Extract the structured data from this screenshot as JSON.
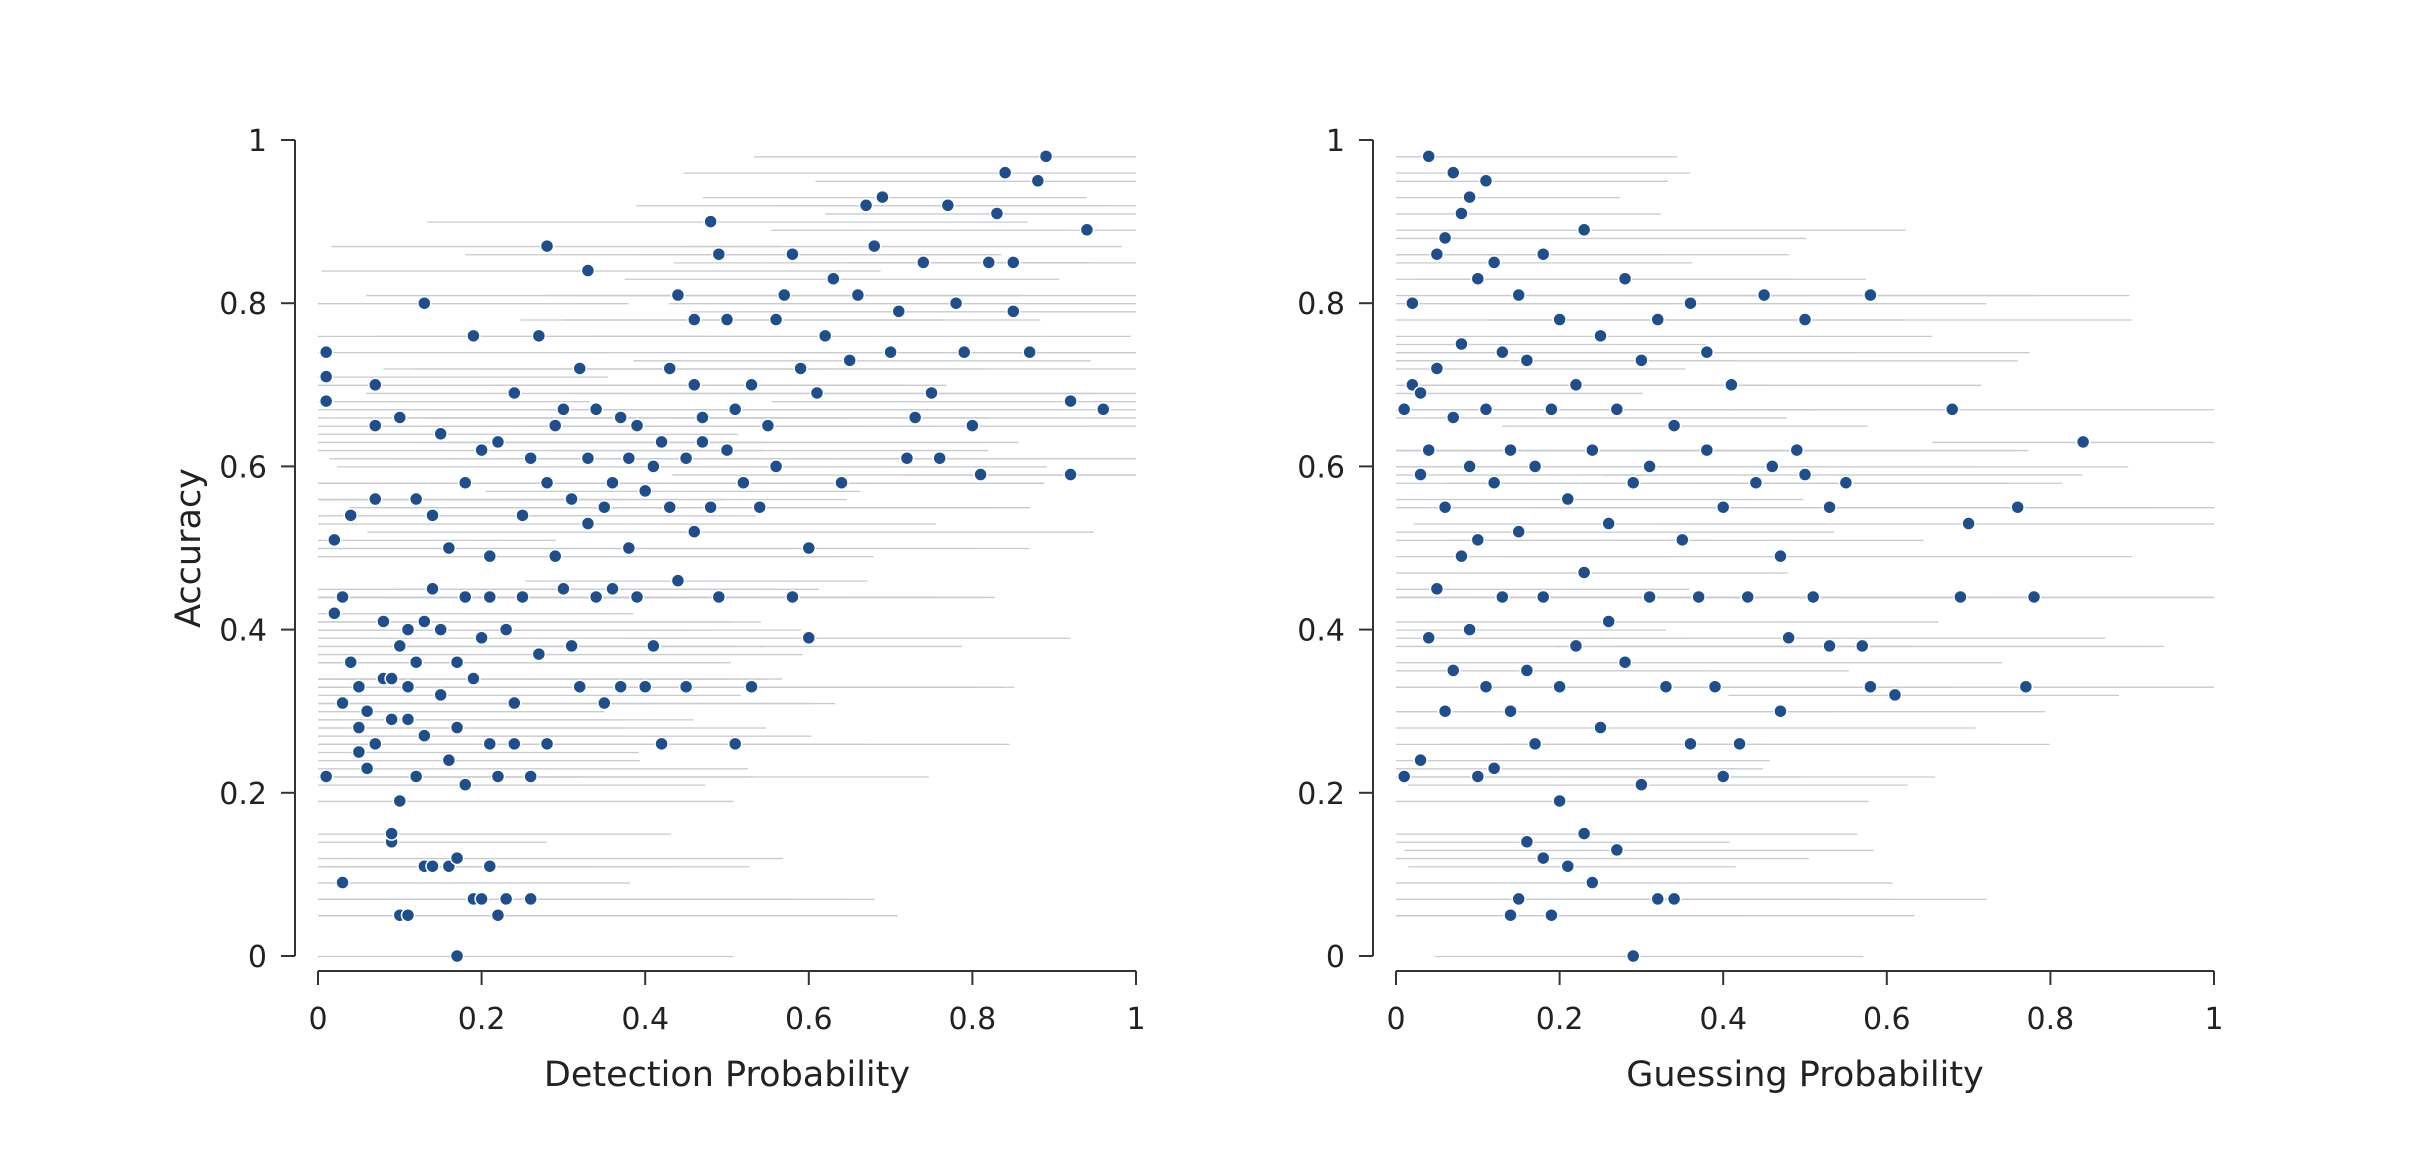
{
  "chart_data": [
    {
      "type": "scatter",
      "panel": "left",
      "xlabel": "Detection Probability",
      "ylabel": "Accuracy",
      "xlim": [
        0,
        1
      ],
      "ylim": [
        0,
        1
      ],
      "xticks": [
        "0",
        "0.2",
        "0.4",
        "0.6",
        "0.8",
        "1"
      ],
      "yticks": [
        "0",
        "0.2",
        "0.4",
        "0.6",
        "0.8",
        "1"
      ],
      "point_color": "#1f4e8c",
      "interval_color": "#c7cbd0",
      "points": [
        [
          0.02,
          0.51
        ],
        [
          0.01,
          0.74
        ],
        [
          0.01,
          0.71
        ],
        [
          0.01,
          0.68
        ],
        [
          0.01,
          0.22
        ],
        [
          0.02,
          0.42
        ],
        [
          0.03,
          0.44
        ],
        [
          0.03,
          0.31
        ],
        [
          0.03,
          0.09
        ],
        [
          0.04,
          0.36
        ],
        [
          0.04,
          0.54
        ],
        [
          0.05,
          0.33
        ],
        [
          0.05,
          0.28
        ],
        [
          0.05,
          0.25
        ],
        [
          0.06,
          0.23
        ],
        [
          0.06,
          0.3
        ],
        [
          0.07,
          0.65
        ],
        [
          0.07,
          0.7
        ],
        [
          0.07,
          0.56
        ],
        [
          0.07,
          0.26
        ],
        [
          0.08,
          0.34
        ],
        [
          0.08,
          0.41
        ],
        [
          0.09,
          0.14
        ],
        [
          0.09,
          0.15
        ],
        [
          0.09,
          0.34
        ],
        [
          0.09,
          0.29
        ],
        [
          0.1,
          0.38
        ],
        [
          0.1,
          0.66
        ],
        [
          0.1,
          0.19
        ],
        [
          0.1,
          0.05
        ],
        [
          0.11,
          0.4
        ],
        [
          0.11,
          0.33
        ],
        [
          0.11,
          0.29
        ],
        [
          0.11,
          0.05
        ],
        [
          0.12,
          0.36
        ],
        [
          0.12,
          0.56
        ],
        [
          0.12,
          0.22
        ],
        [
          0.13,
          0.27
        ],
        [
          0.13,
          0.8
        ],
        [
          0.13,
          0.11
        ],
        [
          0.13,
          0.41
        ],
        [
          0.14,
          0.54
        ],
        [
          0.14,
          0.45
        ],
        [
          0.14,
          0.11
        ],
        [
          0.15,
          0.4
        ],
        [
          0.15,
          0.32
        ],
        [
          0.15,
          0.64
        ],
        [
          0.16,
          0.24
        ],
        [
          0.16,
          0.11
        ],
        [
          0.16,
          0.5
        ],
        [
          0.17,
          0.12
        ],
        [
          0.17,
          0.0
        ],
        [
          0.17,
          0.36
        ],
        [
          0.17,
          0.28
        ],
        [
          0.18,
          0.21
        ],
        [
          0.18,
          0.58
        ],
        [
          0.18,
          0.44
        ],
        [
          0.19,
          0.76
        ],
        [
          0.19,
          0.07
        ],
        [
          0.19,
          0.34
        ],
        [
          0.2,
          0.62
        ],
        [
          0.2,
          0.39
        ],
        [
          0.2,
          0.07
        ],
        [
          0.21,
          0.26
        ],
        [
          0.21,
          0.44
        ],
        [
          0.21,
          0.49
        ],
        [
          0.21,
          0.11
        ],
        [
          0.22,
          0.05
        ],
        [
          0.22,
          0.22
        ],
        [
          0.22,
          0.63
        ],
        [
          0.23,
          0.07
        ],
        [
          0.23,
          0.4
        ],
        [
          0.24,
          0.31
        ],
        [
          0.24,
          0.69
        ],
        [
          0.24,
          0.26
        ],
        [
          0.25,
          0.44
        ],
        [
          0.25,
          0.54
        ],
        [
          0.26,
          0.07
        ],
        [
          0.26,
          0.22
        ],
        [
          0.26,
          0.61
        ],
        [
          0.27,
          0.76
        ],
        [
          0.27,
          0.37
        ],
        [
          0.28,
          0.87
        ],
        [
          0.28,
          0.26
        ],
        [
          0.28,
          0.58
        ],
        [
          0.29,
          0.65
        ],
        [
          0.29,
          0.49
        ],
        [
          0.3,
          0.45
        ],
        [
          0.3,
          0.67
        ],
        [
          0.31,
          0.56
        ],
        [
          0.31,
          0.38
        ],
        [
          0.32,
          0.72
        ],
        [
          0.32,
          0.33
        ],
        [
          0.33,
          0.61
        ],
        [
          0.33,
          0.84
        ],
        [
          0.33,
          0.53
        ],
        [
          0.34,
          0.44
        ],
        [
          0.34,
          0.67
        ],
        [
          0.35,
          0.55
        ],
        [
          0.35,
          0.31
        ],
        [
          0.36,
          0.58
        ],
        [
          0.36,
          0.45
        ],
        [
          0.37,
          0.66
        ],
        [
          0.37,
          0.33
        ],
        [
          0.38,
          0.61
        ],
        [
          0.38,
          0.5
        ],
        [
          0.39,
          0.65
        ],
        [
          0.39,
          0.44
        ],
        [
          0.4,
          0.57
        ],
        [
          0.4,
          0.33
        ],
        [
          0.41,
          0.6
        ],
        [
          0.41,
          0.38
        ],
        [
          0.42,
          0.63
        ],
        [
          0.42,
          0.26
        ],
        [
          0.43,
          0.72
        ],
        [
          0.43,
          0.55
        ],
        [
          0.44,
          0.81
        ],
        [
          0.44,
          0.46
        ],
        [
          0.45,
          0.61
        ],
        [
          0.45,
          0.33
        ],
        [
          0.46,
          0.7
        ],
        [
          0.46,
          0.78
        ],
        [
          0.46,
          0.52
        ],
        [
          0.47,
          0.63
        ],
        [
          0.47,
          0.66
        ],
        [
          0.48,
          0.55
        ],
        [
          0.48,
          0.9
        ],
        [
          0.49,
          0.86
        ],
        [
          0.49,
          0.44
        ],
        [
          0.5,
          0.62
        ],
        [
          0.5,
          0.78
        ],
        [
          0.51,
          0.26
        ],
        [
          0.51,
          0.67
        ],
        [
          0.52,
          0.58
        ],
        [
          0.53,
          0.33
        ],
        [
          0.53,
          0.7
        ],
        [
          0.54,
          0.55
        ],
        [
          0.55,
          0.65
        ],
        [
          0.56,
          0.6
        ],
        [
          0.56,
          0.78
        ],
        [
          0.57,
          0.81
        ],
        [
          0.58,
          0.86
        ],
        [
          0.58,
          0.44
        ],
        [
          0.59,
          0.72
        ],
        [
          0.6,
          0.5
        ],
        [
          0.6,
          0.39
        ],
        [
          0.61,
          0.69
        ],
        [
          0.62,
          0.76
        ],
        [
          0.63,
          0.83
        ],
        [
          0.64,
          0.58
        ],
        [
          0.65,
          0.73
        ],
        [
          0.66,
          0.81
        ],
        [
          0.67,
          0.92
        ],
        [
          0.68,
          0.87
        ],
        [
          0.69,
          0.93
        ],
        [
          0.7,
          0.74
        ],
        [
          0.71,
          0.79
        ],
        [
          0.72,
          0.61
        ],
        [
          0.73,
          0.66
        ],
        [
          0.74,
          0.85
        ],
        [
          0.75,
          0.69
        ],
        [
          0.76,
          0.61
        ],
        [
          0.77,
          0.92
        ],
        [
          0.78,
          0.8
        ],
        [
          0.79,
          0.74
        ],
        [
          0.8,
          0.65
        ],
        [
          0.81,
          0.59
        ],
        [
          0.82,
          0.85
        ],
        [
          0.83,
          0.91
        ],
        [
          0.84,
          0.96
        ],
        [
          0.85,
          0.79
        ],
        [
          0.85,
          0.85
        ],
        [
          0.87,
          0.74
        ],
        [
          0.88,
          0.95
        ],
        [
          0.89,
          0.98
        ],
        [
          0.92,
          0.59
        ],
        [
          0.92,
          0.68
        ],
        [
          0.94,
          0.89
        ],
        [
          0.96,
          0.67
        ]
      ]
    },
    {
      "type": "scatter",
      "panel": "right",
      "xlabel": "Guessing Probability",
      "ylabel": "",
      "xlim": [
        0,
        1
      ],
      "ylim": [
        0,
        1
      ],
      "xticks": [
        "0",
        "0.2",
        "0.4",
        "0.6",
        "0.8",
        "1"
      ],
      "yticks": [
        "0",
        "0.2",
        "0.4",
        "0.6",
        "0.8",
        "1"
      ],
      "point_color": "#1f4e8c",
      "interval_color": "#c7cbd0",
      "points": [
        [
          0.01,
          0.22
        ],
        [
          0.01,
          0.67
        ],
        [
          0.02,
          0.7
        ],
        [
          0.02,
          0.8
        ],
        [
          0.03,
          0.24
        ],
        [
          0.03,
          0.59
        ],
        [
          0.03,
          0.69
        ],
        [
          0.04,
          0.98
        ],
        [
          0.04,
          0.39
        ],
        [
          0.04,
          0.62
        ],
        [
          0.05,
          0.86
        ],
        [
          0.05,
          0.72
        ],
        [
          0.05,
          0.45
        ],
        [
          0.06,
          0.88
        ],
        [
          0.06,
          0.3
        ],
        [
          0.06,
          0.55
        ],
        [
          0.07,
          0.96
        ],
        [
          0.07,
          0.66
        ],
        [
          0.07,
          0.35
        ],
        [
          0.08,
          0.91
        ],
        [
          0.08,
          0.75
        ],
        [
          0.08,
          0.49
        ],
        [
          0.09,
          0.93
        ],
        [
          0.09,
          0.6
        ],
        [
          0.09,
          0.4
        ],
        [
          0.1,
          0.83
        ],
        [
          0.1,
          0.22
        ],
        [
          0.1,
          0.51
        ],
        [
          0.11,
          0.95
        ],
        [
          0.11,
          0.67
        ],
        [
          0.11,
          0.33
        ],
        [
          0.12,
          0.85
        ],
        [
          0.12,
          0.58
        ],
        [
          0.12,
          0.23
        ],
        [
          0.13,
          0.74
        ],
        [
          0.13,
          0.44
        ],
        [
          0.14,
          0.62
        ],
        [
          0.14,
          0.05
        ],
        [
          0.14,
          0.3
        ],
        [
          0.15,
          0.81
        ],
        [
          0.15,
          0.07
        ],
        [
          0.15,
          0.52
        ],
        [
          0.16,
          0.73
        ],
        [
          0.16,
          0.14
        ],
        [
          0.16,
          0.35
        ],
        [
          0.17,
          0.6
        ],
        [
          0.17,
          0.26
        ],
        [
          0.18,
          0.86
        ],
        [
          0.18,
          0.12
        ],
        [
          0.18,
          0.44
        ],
        [
          0.19,
          0.67
        ],
        [
          0.19,
          0.05
        ],
        [
          0.2,
          0.78
        ],
        [
          0.2,
          0.19
        ],
        [
          0.2,
          0.33
        ],
        [
          0.21,
          0.56
        ],
        [
          0.21,
          0.11
        ],
        [
          0.22,
          0.7
        ],
        [
          0.22,
          0.38
        ],
        [
          0.23,
          0.89
        ],
        [
          0.23,
          0.15
        ],
        [
          0.23,
          0.47
        ],
        [
          0.24,
          0.62
        ],
        [
          0.24,
          0.09
        ],
        [
          0.25,
          0.76
        ],
        [
          0.25,
          0.28
        ],
        [
          0.26,
          0.53
        ],
        [
          0.26,
          0.41
        ],
        [
          0.27,
          0.67
        ],
        [
          0.27,
          0.13
        ],
        [
          0.28,
          0.83
        ],
        [
          0.28,
          0.36
        ],
        [
          0.29,
          0.58
        ],
        [
          0.29,
          0.0
        ],
        [
          0.3,
          0.73
        ],
        [
          0.3,
          0.21
        ],
        [
          0.31,
          0.44
        ],
        [
          0.31,
          0.6
        ],
        [
          0.32,
          0.78
        ],
        [
          0.32,
          0.07
        ],
        [
          0.33,
          0.33
        ],
        [
          0.34,
          0.65
        ],
        [
          0.34,
          0.07
        ],
        [
          0.35,
          0.51
        ],
        [
          0.36,
          0.8
        ],
        [
          0.36,
          0.26
        ],
        [
          0.37,
          0.44
        ],
        [
          0.38,
          0.62
        ],
        [
          0.38,
          0.74
        ],
        [
          0.39,
          0.33
        ],
        [
          0.4,
          0.55
        ],
        [
          0.4,
          0.22
        ],
        [
          0.41,
          0.7
        ],
        [
          0.42,
          0.26
        ],
        [
          0.43,
          0.44
        ],
        [
          0.44,
          0.58
        ],
        [
          0.45,
          0.81
        ],
        [
          0.46,
          0.6
        ],
        [
          0.47,
          0.49
        ],
        [
          0.47,
          0.3
        ],
        [
          0.48,
          0.39
        ],
        [
          0.49,
          0.62
        ],
        [
          0.5,
          0.78
        ],
        [
          0.5,
          0.59
        ],
        [
          0.51,
          0.44
        ],
        [
          0.53,
          0.38
        ],
        [
          0.53,
          0.55
        ],
        [
          0.55,
          0.58
        ],
        [
          0.57,
          0.38
        ],
        [
          0.58,
          0.33
        ],
        [
          0.58,
          0.81
        ],
        [
          0.61,
          0.32
        ],
        [
          0.68,
          0.67
        ],
        [
          0.69,
          0.44
        ],
        [
          0.7,
          0.53
        ],
        [
          0.76,
          0.55
        ],
        [
          0.77,
          0.33
        ],
        [
          0.78,
          0.44
        ],
        [
          0.84,
          0.63
        ]
      ]
    }
  ]
}
